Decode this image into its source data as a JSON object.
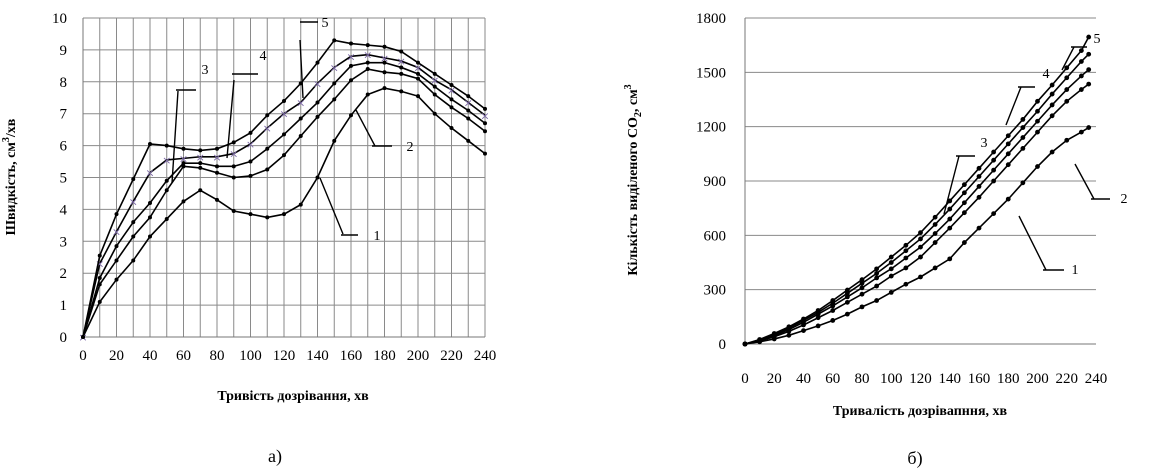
{
  "chart_data": [
    {
      "type": "line",
      "panel_label": "а)",
      "xlabel": "Тривість дозрівання, хв",
      "ylabel": "Швидкість, см³/хв",
      "ylabel_parts": {
        "a": "Швидкість, см",
        "sup": "3",
        "b": "/хв"
      },
      "xlim": [
        0,
        240
      ],
      "ylim": [
        0,
        10
      ],
      "x_ticks": [
        0,
        20,
        40,
        60,
        80,
        100,
        120,
        140,
        160,
        180,
        200,
        220,
        240
      ],
      "y_ticks": [
        0,
        1,
        2,
        3,
        4,
        5,
        6,
        7,
        8,
        9,
        10
      ],
      "grid": "vertical and horizontal",
      "x": [
        0,
        10,
        20,
        30,
        40,
        50,
        60,
        70,
        80,
        90,
        100,
        110,
        120,
        130,
        140,
        150,
        160,
        170,
        180,
        190,
        200,
        210,
        220,
        230,
        240
      ],
      "series": [
        {
          "name": "1",
          "color": "#000000",
          "values": [
            0,
            1.1,
            1.8,
            2.4,
            3.15,
            3.7,
            4.25,
            4.6,
            4.3,
            3.95,
            3.85,
            3.75,
            3.85,
            4.15,
            5.0,
            6.15,
            6.95,
            7.6,
            7.8,
            7.7,
            7.55,
            7.0,
            6.55,
            6.15,
            5.75
          ]
        },
        {
          "name": "2",
          "color": "#000000",
          "values": [
            0,
            1.65,
            2.4,
            3.15,
            3.75,
            4.6,
            5.35,
            5.3,
            5.15,
            5.0,
            5.05,
            5.25,
            5.7,
            6.3,
            6.9,
            7.45,
            8.05,
            8.4,
            8.3,
            8.25,
            8.1,
            7.6,
            7.2,
            6.85,
            6.45
          ]
        },
        {
          "name": "3",
          "color": "#000000",
          "values": [
            0,
            1.85,
            2.85,
            3.6,
            4.2,
            4.9,
            5.45,
            5.45,
            5.35,
            5.35,
            5.5,
            5.9,
            6.35,
            6.85,
            7.35,
            7.95,
            8.5,
            8.6,
            8.6,
            8.45,
            8.25,
            7.85,
            7.45,
            7.1,
            6.7
          ]
        },
        {
          "name": "4",
          "color": "#7b68a6",
          "values": [
            0,
            2.3,
            3.3,
            4.25,
            5.15,
            5.55,
            5.6,
            5.65,
            5.65,
            5.75,
            6.05,
            6.55,
            7.0,
            7.35,
            7.95,
            8.45,
            8.8,
            8.85,
            8.75,
            8.65,
            8.45,
            8.05,
            7.75,
            7.35,
            6.95
          ]
        },
        {
          "name": "5",
          "color": "#000000",
          "values": [
            0,
            2.55,
            3.85,
            4.95,
            6.05,
            6.0,
            5.9,
            5.85,
            5.9,
            6.1,
            6.4,
            6.95,
            7.4,
            7.95,
            8.6,
            9.3,
            9.2,
            9.15,
            9.1,
            8.95,
            8.6,
            8.25,
            7.9,
            7.55,
            7.15
          ]
        }
      ],
      "curve_labels": [
        "1",
        "2",
        "3",
        "4",
        "5"
      ]
    },
    {
      "type": "line",
      "panel_label": "б)",
      "xlabel": "Тривалість дозрівапння, хв",
      "ylabel": "Кількість виділеного CO₂, см³",
      "ylabel_parts": {
        "a": "Кількість виділеного CO",
        "sub": "2",
        "b": ", см",
        "sup": "3"
      },
      "xlim": [
        0,
        240
      ],
      "ylim": [
        0,
        1800
      ],
      "x_ticks": [
        0,
        20,
        40,
        60,
        80,
        100,
        120,
        140,
        160,
        180,
        200,
        220,
        240
      ],
      "y_ticks": [
        0,
        300,
        600,
        900,
        1200,
        1500,
        1800
      ],
      "grid": "horizontal",
      "x": [
        0,
        10,
        20,
        30,
        40,
        50,
        60,
        70,
        80,
        90,
        100,
        110,
        120,
        130,
        140,
        150,
        160,
        170,
        180,
        190,
        200,
        210,
        220,
        230,
        235
      ],
      "series": [
        {
          "name": "1",
          "color": "#000000",
          "values": [
            0,
            12,
            28,
            48,
            74,
            100,
            130,
            165,
            205,
            240,
            285,
            330,
            370,
            420,
            470,
            560,
            640,
            720,
            800,
            890,
            980,
            1060,
            1125,
            1170,
            1195
          ]
        },
        {
          "name": "2",
          "color": "#000000",
          "values": [
            0,
            17,
            40,
            70,
            105,
            145,
            185,
            230,
            275,
            320,
            375,
            420,
            480,
            560,
            640,
            725,
            810,
            900,
            990,
            1080,
            1170,
            1260,
            1340,
            1405,
            1435
          ]
        },
        {
          "name": "3",
          "color": "#000000",
          "values": [
            0,
            20,
            45,
            80,
            120,
            165,
            210,
            260,
            310,
            365,
            415,
            475,
            535,
            610,
            690,
            780,
            870,
            960,
            1050,
            1140,
            1230,
            1320,
            1405,
            1480,
            1515
          ]
        },
        {
          "name": "4",
          "color": "#000000",
          "values": [
            0,
            22,
            52,
            88,
            130,
            175,
            225,
            280,
            335,
            390,
            450,
            515,
            580,
            660,
            745,
            835,
            925,
            1015,
            1105,
            1195,
            1285,
            1380,
            1470,
            1560,
            1600
          ]
        },
        {
          "name": "5",
          "color": "#000000",
          "values": [
            0,
            25,
            58,
            95,
            138,
            185,
            240,
            298,
            355,
            415,
            480,
            545,
            615,
            700,
            790,
            880,
            970,
            1060,
            1150,
            1240,
            1340,
            1430,
            1525,
            1620,
            1695
          ]
        }
      ],
      "curve_labels": [
        "1",
        "2",
        "3",
        "4",
        "5"
      ]
    }
  ]
}
